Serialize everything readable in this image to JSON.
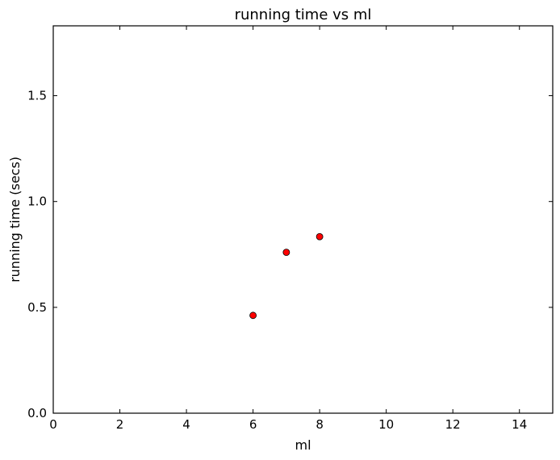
{
  "chart_data": {
    "type": "scatter",
    "title": "running time vs ml",
    "xlabel": "ml",
    "ylabel": "running time (secs)",
    "xlim": [
      0,
      15
    ],
    "ylim": [
      0,
      1.83
    ],
    "xticks": [
      "0",
      "2",
      "4",
      "6",
      "8",
      "10",
      "12",
      "14"
    ],
    "yticks": [
      "0.0",
      "0.5",
      "1.0",
      "1.5"
    ],
    "grid": false,
    "series": [
      {
        "color": "#ff0000",
        "marker": "circle",
        "points": [
          {
            "x": 6,
            "y": 0.462
          },
          {
            "x": 7,
            "y": 0.76
          },
          {
            "x": 8,
            "y": 0.834
          }
        ]
      }
    ]
  }
}
